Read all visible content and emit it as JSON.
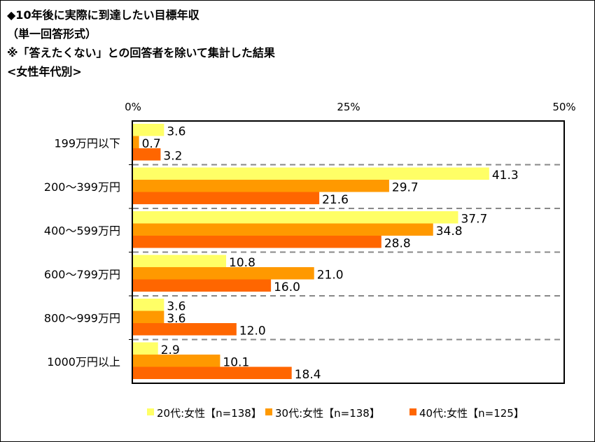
{
  "title_lines": [
    "◆10年後に実際に到達したい目標年収",
    "（単一回答形式）",
    "※「答えたくない」との回答者を除いて集計した結果",
    "<女性年代別>"
  ],
  "chart_data": {
    "type": "bar",
    "orientation": "horizontal",
    "categories": [
      "199万円以下",
      "200～399万円",
      "400～599万円",
      "600～799万円",
      "800～999万円",
      "1000万円以上"
    ],
    "series": [
      {
        "name": "20代:女性【n=138】",
        "color": "#FFFF66",
        "values": [
          3.6,
          41.3,
          37.7,
          10.8,
          3.6,
          2.9
        ]
      },
      {
        "name": "30代:女性【n=138】",
        "color": "#FF9900",
        "values": [
          0.7,
          29.7,
          34.8,
          21.0,
          3.6,
          10.1
        ]
      },
      {
        "name": "40代:女性【n=125】",
        "color": "#FF6600",
        "values": [
          3.2,
          21.6,
          28.8,
          16.0,
          12.0,
          18.4
        ]
      }
    ],
    "xlim": [
      0,
      50
    ],
    "xticks": [
      "0%",
      "25%",
      "50%"
    ],
    "legend_position": "bottom"
  }
}
